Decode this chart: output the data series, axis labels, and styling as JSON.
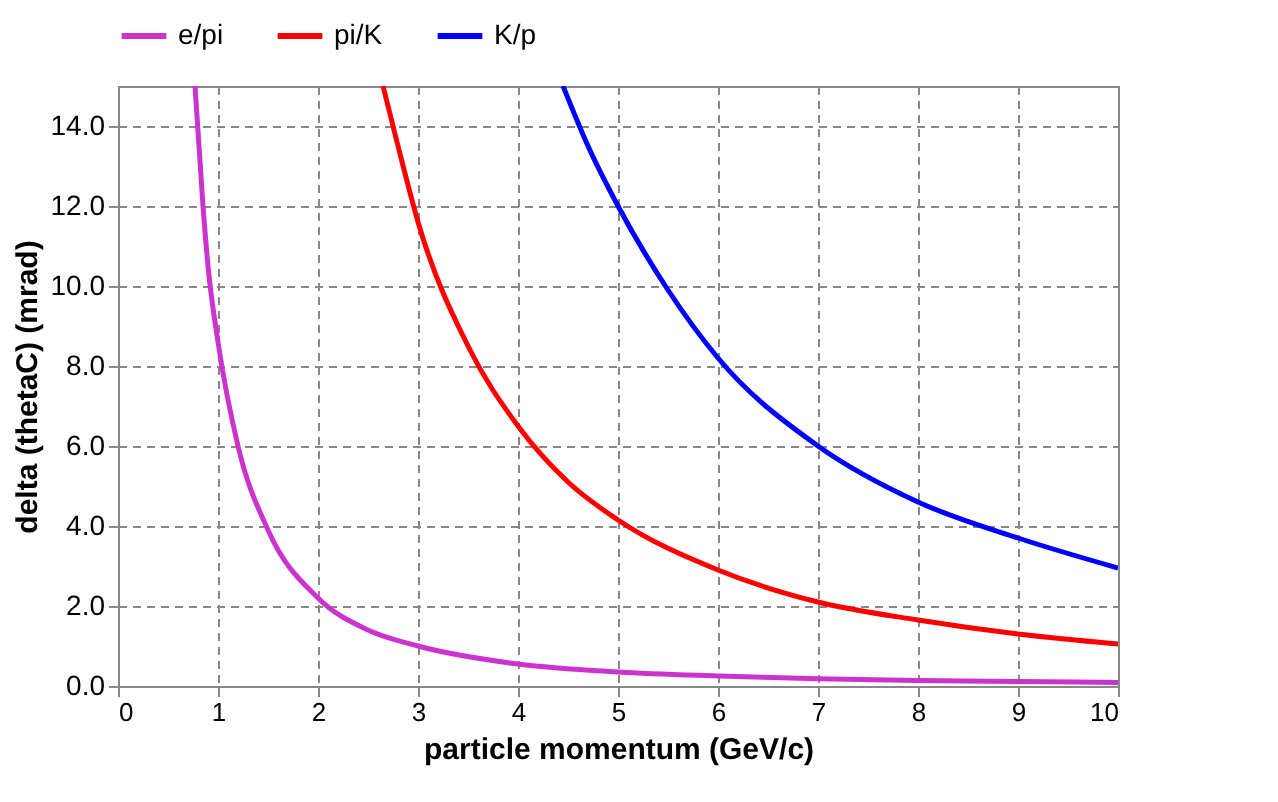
{
  "chart_data": {
    "type": "line",
    "xlabel": "particle momentum (GeV/c)",
    "ylabel": "delta (thetaC) (mrad)",
    "xlim": [
      0,
      10
    ],
    "xticks": [
      0,
      1,
      2,
      3,
      4,
      5,
      6,
      7,
      8,
      9,
      10
    ],
    "ylim": [
      0,
      15
    ],
    "yticks": [
      {
        "value": 0,
        "label": "0.0"
      },
      {
        "value": 2,
        "label": "2.0"
      },
      {
        "value": 4,
        "label": "4.0"
      },
      {
        "value": 6,
        "label": "6.0"
      },
      {
        "value": 8,
        "label": "8.0"
      },
      {
        "value": 10,
        "label": "10.0"
      },
      {
        "value": 12,
        "label": "12.0"
      },
      {
        "value": 14,
        "label": "14.0"
      }
    ],
    "grid": true,
    "legend": "top",
    "marker": "none",
    "line_style": "solid",
    "series": [
      {
        "name": "e/pi",
        "color": "#cc33cc",
        "x": [
          0.77,
          0.85,
          0.9,
          1,
          1.2,
          1.5,
          2,
          2.5,
          3,
          4,
          5,
          6,
          7,
          8,
          9,
          10
        ],
        "values": [
          15,
          12,
          10.5,
          8.6,
          6,
          3.9,
          2.2,
          1.4,
          1.0,
          0.55,
          0.35,
          0.25,
          0.18,
          0.14,
          0.11,
          0.09
        ]
      },
      {
        "name": "pi/K",
        "color": "#ff0000",
        "x": [
          2.65,
          2.8,
          3,
          3.5,
          4,
          4.5,
          5,
          6,
          7,
          8,
          9,
          10
        ],
        "values": [
          15,
          13.5,
          11.6,
          8.5,
          6.5,
          5.1,
          4.15,
          2.9,
          2.1,
          1.65,
          1.3,
          1.05
        ]
      },
      {
        "name": "K/p",
        "color": "#0000ff",
        "x": [
          4.45,
          4.7,
          5,
          5.5,
          6,
          7,
          8,
          9,
          10
        ],
        "values": [
          15,
          13.5,
          12,
          9.9,
          8.2,
          6.0,
          4.6,
          3.7,
          2.95
        ]
      }
    ]
  }
}
